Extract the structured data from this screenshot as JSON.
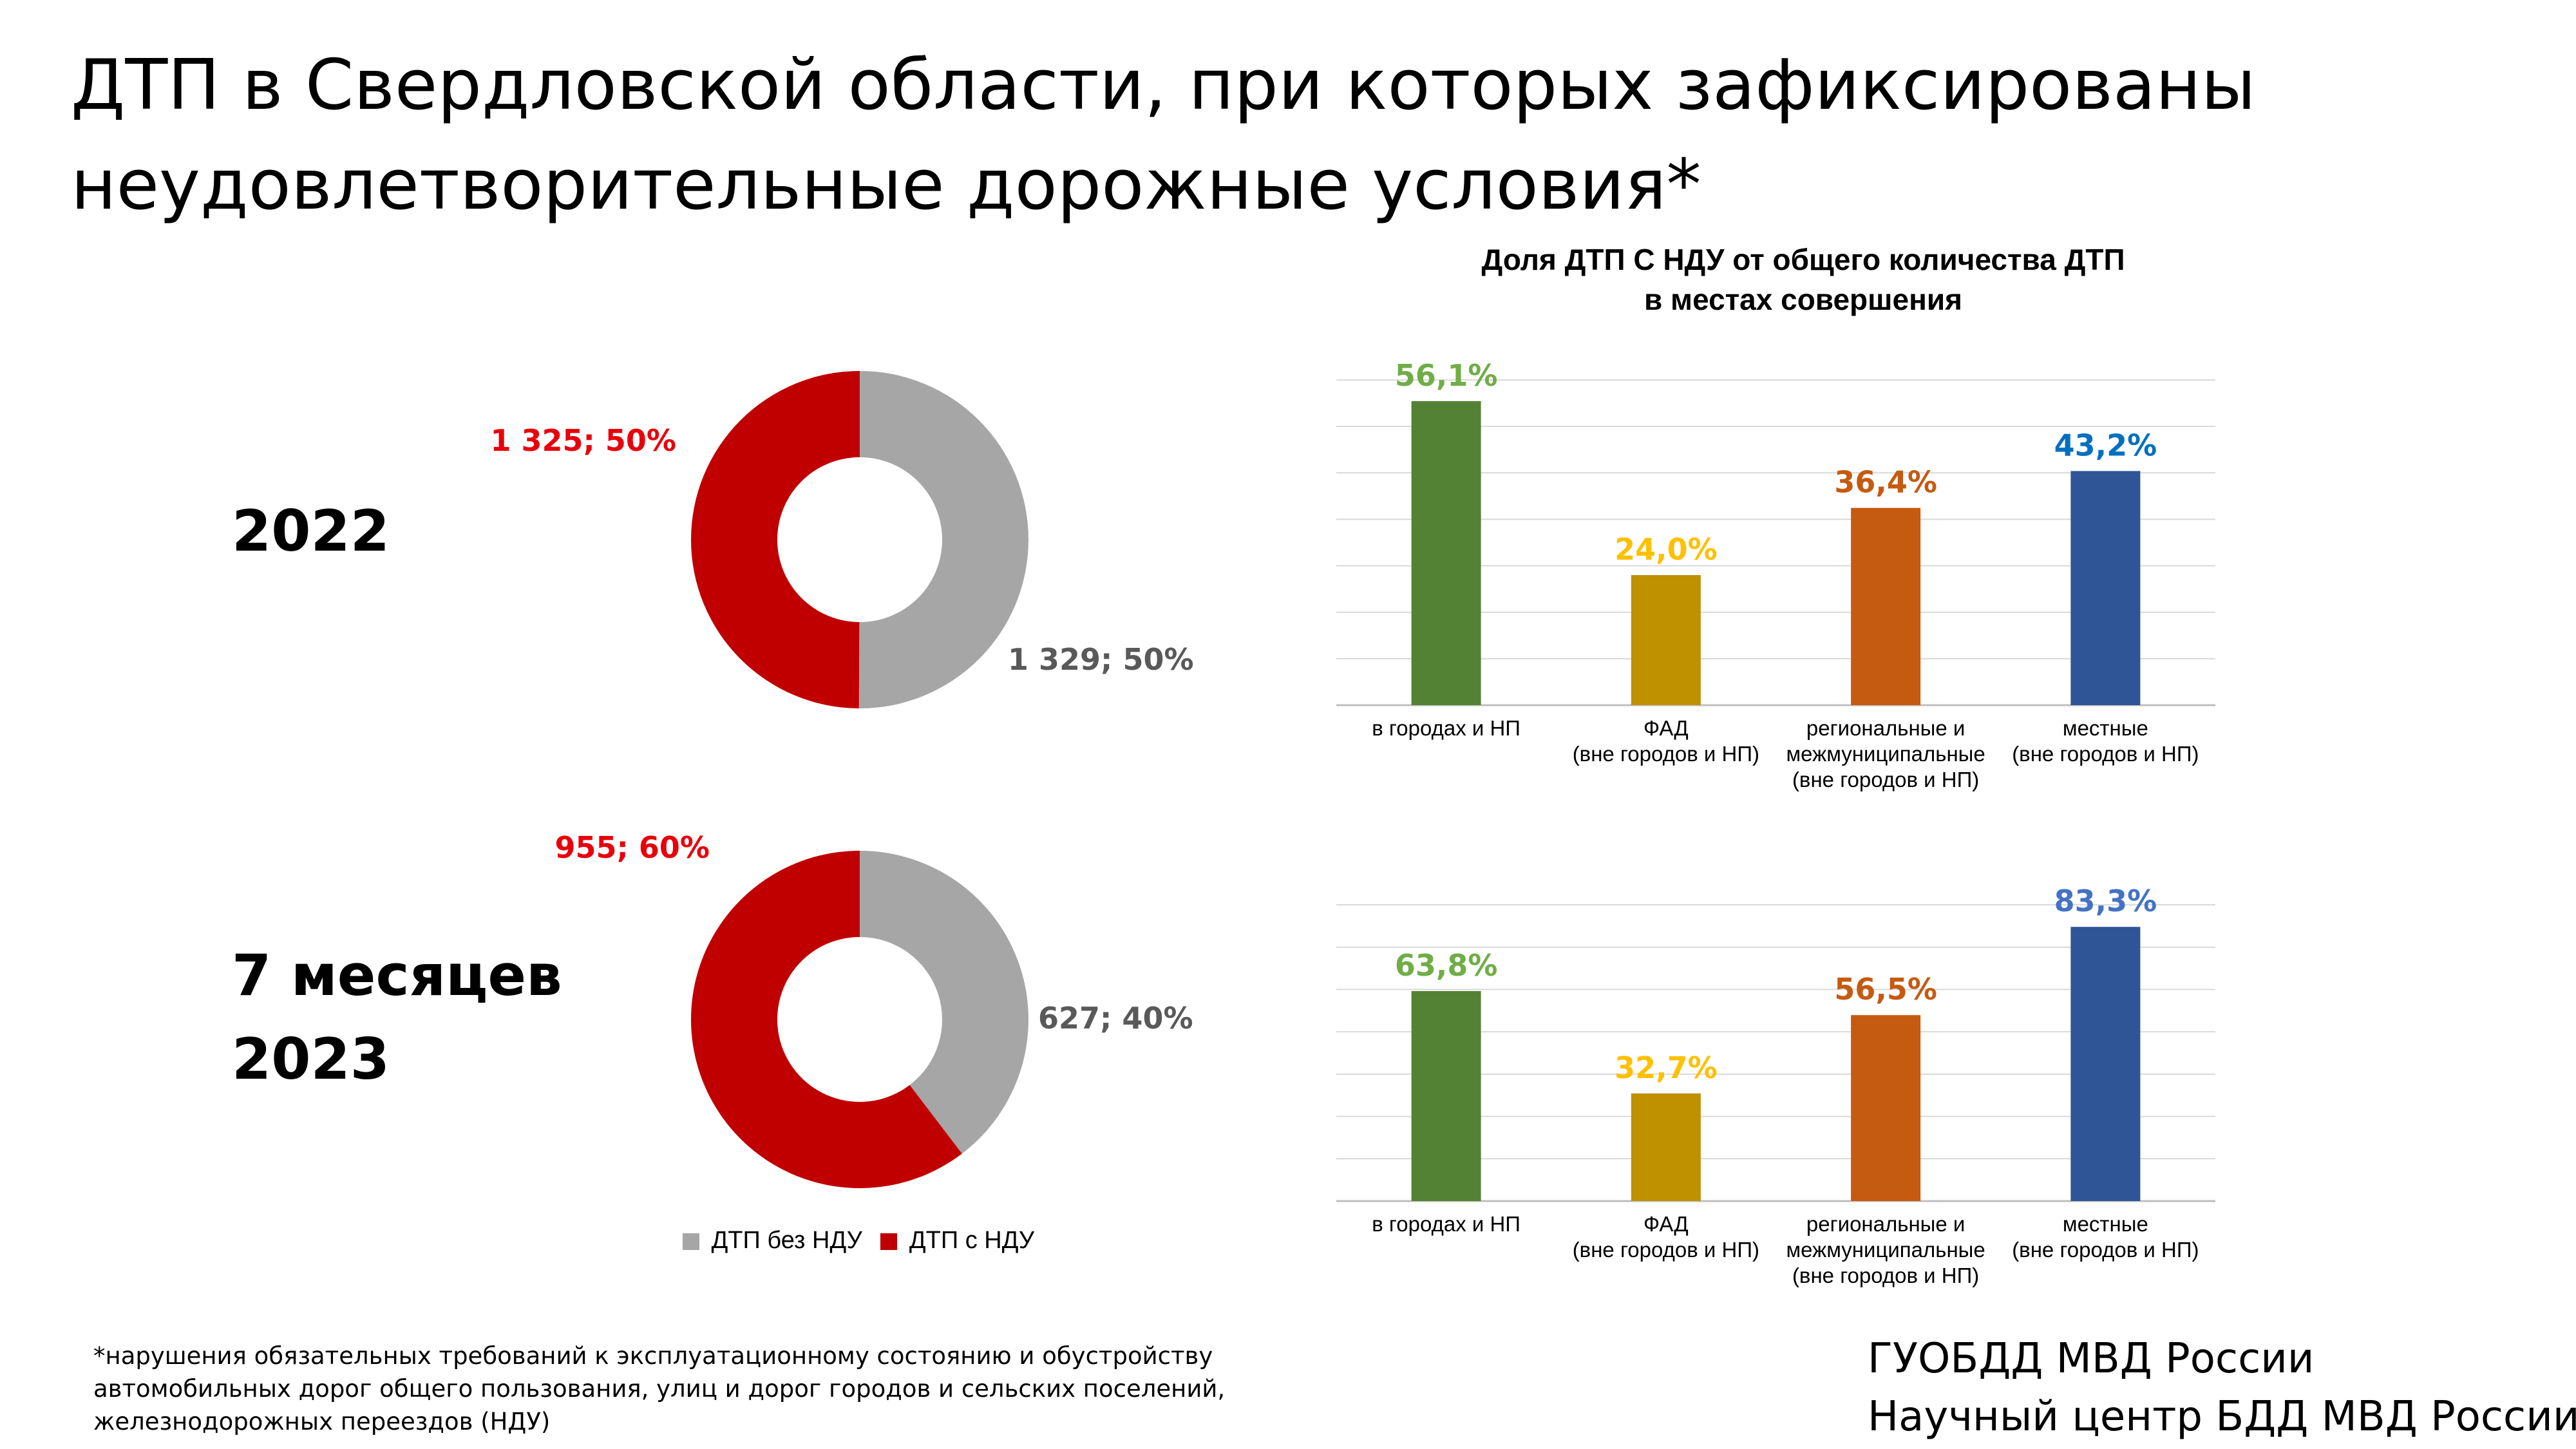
{
  "title": {
    "line1": "ДТП в Свердловской области, при которых зафиксированы",
    "line2": "неудовлетворительные дорожные условия*"
  },
  "periods": [
    {
      "label_lines": [
        "2022"
      ]
    },
    {
      "label_lines": [
        "7 месяцев",
        "2023"
      ]
    }
  ],
  "bar_chart_title": {
    "line1": "Доля ДТП С НДУ от общего количества ДТП",
    "line2": "в местах совершения"
  },
  "legend": {
    "items": [
      {
        "label": "ДТП без НДУ",
        "color": "#a6a6a6"
      },
      {
        "label": "ДТП с НДУ",
        "color": "#c00000"
      }
    ]
  },
  "footnote": {
    "line1": "*нарушения обязательных требований к эксплуатационному состоянию и обустройству",
    "line2": "автомобильных дорог общего пользования, улиц и дорог городов и сельских поселений,",
    "line3": "железнодорожных переездов (НДУ)"
  },
  "source": {
    "line1": "ГУОБДД МВД России",
    "line2": "Научный центр БДД МВД России"
  },
  "chart_data": [
    {
      "type": "pie",
      "variant": "donut",
      "period": "2022",
      "slices": [
        {
          "name": "ДТП без НДУ",
          "value": 1329,
          "percent": 50,
          "label": "1 329; 50%",
          "color": "#a6a6a6",
          "label_color": "#595959"
        },
        {
          "name": "ДТП с НДУ",
          "value": 1325,
          "percent": 50,
          "label": "1 325; 50%",
          "color": "#c00000",
          "label_color": "#e8000b"
        }
      ]
    },
    {
      "type": "pie",
      "variant": "donut",
      "period": "7 месяцев 2023",
      "slices": [
        {
          "name": "ДТП без НДУ",
          "value": 627,
          "percent": 40,
          "label": "627; 40%",
          "color": "#a6a6a6",
          "label_color": "#595959"
        },
        {
          "name": "ДТП с НДУ",
          "value": 955,
          "percent": 60,
          "label": "955; 60%",
          "color": "#c00000",
          "label_color": "#e8000b"
        }
      ]
    },
    {
      "type": "bar",
      "period": "2022",
      "categories": [
        [
          "в городах и НП"
        ],
        [
          "ФАД",
          "(вне городов и НП)"
        ],
        [
          "региональные и",
          "межмуниципальные",
          "(вне городов и НП)"
        ],
        [
          "местные",
          "(вне городов и НП)"
        ]
      ],
      "values": [
        56.1,
        24.0,
        36.4,
        43.2
      ],
      "labels": [
        "56,1%",
        "24,0%",
        "36,4%",
        "43,2%"
      ],
      "bar_colors": [
        "#548235",
        "#bf9000",
        "#c55a11",
        "#2f5597"
      ],
      "label_colors": [
        "#70ad47",
        "#ffc000",
        "#c55a11",
        "#0070c0"
      ],
      "ylim": [
        0,
        60
      ],
      "grid": true
    },
    {
      "type": "bar",
      "period": "7 месяцев 2023",
      "categories": [
        [
          "в городах и НП"
        ],
        [
          "ФАД",
          "(вне городов и НП)"
        ],
        [
          "региональные и",
          "межмуниципальные",
          "(вне городов и НП)"
        ],
        [
          "местные",
          "(вне городов и НП)"
        ]
      ],
      "values": [
        63.8,
        32.7,
        56.5,
        83.3
      ],
      "labels": [
        "63,8%",
        "32,7%",
        "56,5%",
        "83,3%"
      ],
      "bar_colors": [
        "#548235",
        "#bf9000",
        "#c55a11",
        "#2f5597"
      ],
      "label_colors": [
        "#70ad47",
        "#ffc000",
        "#c55a11",
        "#4472c4"
      ],
      "ylim": [
        0,
        90
      ],
      "grid": true
    }
  ]
}
